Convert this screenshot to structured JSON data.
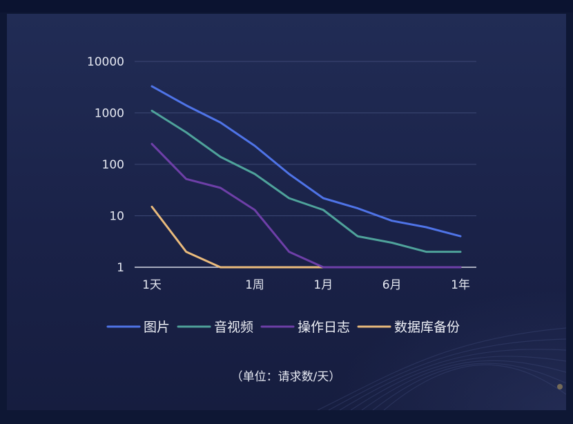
{
  "chart_data": {
    "type": "line",
    "y_scale": "log",
    "ylim": [
      1,
      10000
    ],
    "yticks": [
      {
        "value": 1,
        "label": "1"
      },
      {
        "value": 10,
        "label": "10"
      },
      {
        "value": 100,
        "label": "100"
      },
      {
        "value": 1000,
        "label": "1000"
      },
      {
        "value": 10000,
        "label": "10000"
      }
    ],
    "x_ticks": [
      {
        "index": 0,
        "label": "1天"
      },
      {
        "index": 3,
        "label": "1周"
      },
      {
        "index": 5,
        "label": "1月"
      },
      {
        "index": 7,
        "label": "6月"
      },
      {
        "index": 9,
        "label": "1年"
      }
    ],
    "x_count": 10,
    "grid": true,
    "legend_position": "bottom",
    "series": [
      {
        "name": "图片",
        "color": "#4f74e8",
        "values": [
          3300,
          1400,
          650,
          230,
          65,
          22,
          14,
          8,
          6,
          4
        ]
      },
      {
        "name": "音视频",
        "color": "#4fa39b",
        "values": [
          1100,
          420,
          140,
          65,
          22,
          13,
          4,
          3,
          2,
          2
        ]
      },
      {
        "name": "操作日志",
        "color": "#6e3fa8",
        "values": [
          250,
          52,
          35,
          13,
          2,
          1,
          1,
          1,
          1,
          1
        ]
      },
      {
        "name": "数据库备份",
        "color": "#eabb7c",
        "values": [
          15,
          2,
          1,
          1,
          1,
          1,
          1,
          1,
          1,
          1
        ]
      }
    ],
    "unit_note": "（单位：请求数/天）"
  }
}
